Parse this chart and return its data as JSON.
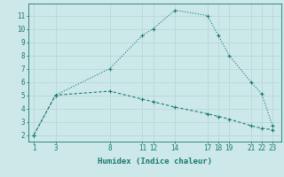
{
  "line1_x": [
    1,
    3,
    8,
    11,
    12,
    14,
    17,
    18,
    19,
    21,
    22,
    23
  ],
  "line1_y": [
    2,
    5,
    7,
    9.5,
    10,
    11.4,
    11,
    9.5,
    8,
    6,
    5.1,
    2.7
  ],
  "line2_x": [
    1,
    3,
    8,
    11,
    12,
    14,
    17,
    18,
    19,
    21,
    22,
    23
  ],
  "line2_y": [
    2,
    5,
    5.3,
    4.7,
    4.5,
    4.1,
    3.6,
    3.4,
    3.2,
    2.7,
    2.5,
    2.4
  ],
  "line_color": "#1a7a6e",
  "bg_color": "#cce8e8",
  "grid_color": "#b8d8d8",
  "xlabel": "Humidex (Indice chaleur)",
  "xticks": [
    1,
    3,
    8,
    11,
    12,
    14,
    17,
    18,
    19,
    21,
    22,
    23
  ],
  "yticks": [
    2,
    3,
    4,
    5,
    6,
    7,
    8,
    9,
    10,
    11
  ],
  "ylim": [
    1.5,
    11.9
  ],
  "xlim": [
    0.5,
    23.8
  ]
}
